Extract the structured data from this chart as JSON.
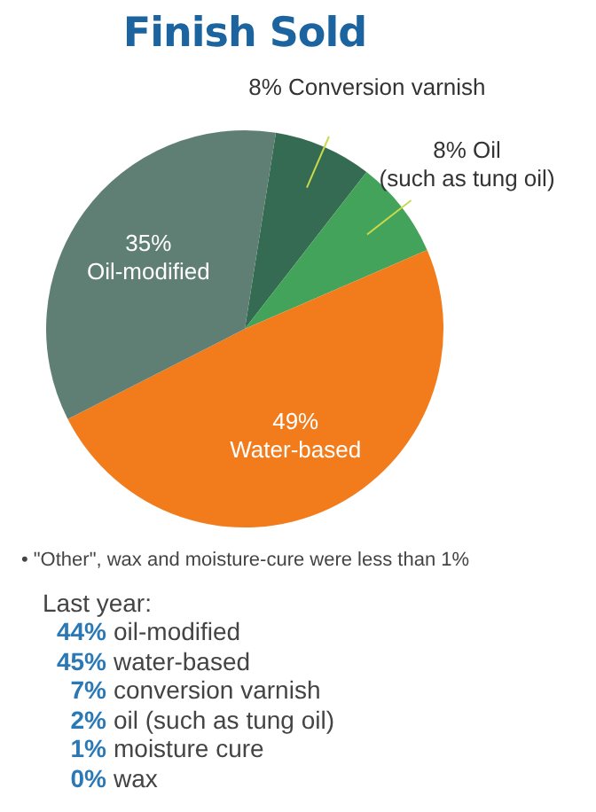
{
  "chart_data": {
    "type": "pie",
    "title": "Finish Sold",
    "categories": [
      "Conversion varnish",
      "Oil (such as tung oil)",
      "Water-based",
      "Oil-modified"
    ],
    "values": [
      8,
      8,
      49,
      35
    ],
    "value_labels": [
      "8%",
      "8%",
      "49%",
      "35%"
    ],
    "colors": [
      "#356b52",
      "#43a35a",
      "#f27c1c",
      "#5f7f74"
    ],
    "legend": false,
    "annotations": [
      "• \"Other\", wax and moisture-cure were less than 1%",
      "Last year:",
      "44% oil-modified",
      "45% water-based",
      "7% conversion varnish",
      "2% oil (such as tung oil)",
      "1% moisture cure",
      "0% wax"
    ]
  }
}
